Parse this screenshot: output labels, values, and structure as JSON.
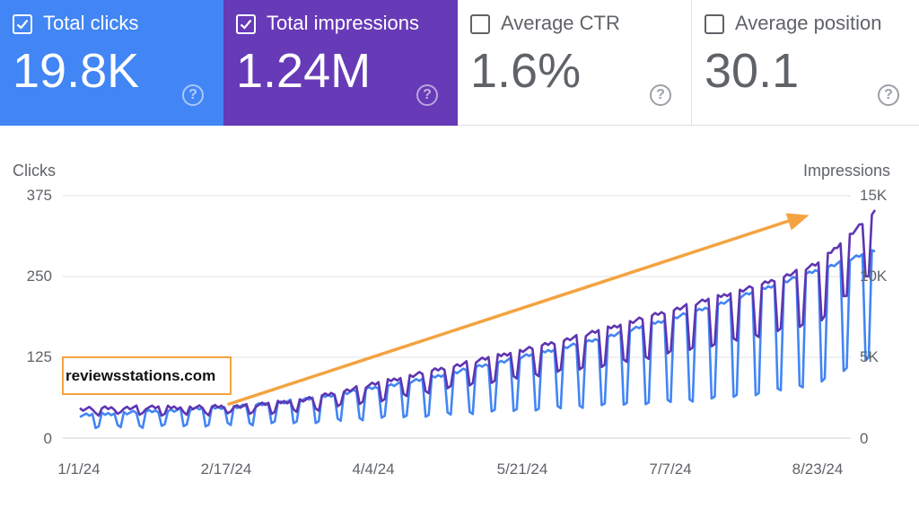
{
  "colors": {
    "clicks": "#4285f4",
    "impressions": "#5e35b1",
    "annotation": "#f4a340",
    "grid": "#e0e0e0"
  },
  "metrics": [
    {
      "label": "Total clicks",
      "value": "19.8K",
      "selected": true,
      "color": "#4285f4",
      "checkbox_icon": "checked-box-icon",
      "help_icon": "help-icon",
      "help_glyph": "?"
    },
    {
      "label": "Total impressions",
      "value": "1.24M",
      "selected": true,
      "color": "#673ab7",
      "checkbox_icon": "checked-box-icon",
      "help_icon": "help-icon",
      "help_glyph": "?"
    },
    {
      "label": "Average CTR",
      "value": "1.6%",
      "selected": false,
      "checkbox_icon": "empty-box-icon",
      "help_icon": "help-icon",
      "help_glyph": "?"
    },
    {
      "label": "Average position",
      "value": "30.1",
      "selected": false,
      "checkbox_icon": "empty-box-icon",
      "help_icon": "help-icon",
      "help_glyph": "?"
    }
  ],
  "watermark": "reviewsstations.com",
  "chart_data": {
    "type": "line",
    "ylabel": "Clicks",
    "y2label": "Impressions",
    "ylim": [
      0,
      375
    ],
    "y2lim": [
      0,
      15000
    ],
    "yticks": [
      "375",
      "250",
      "125",
      "0"
    ],
    "y2ticks": [
      "15K",
      "10K",
      "5K",
      "0"
    ],
    "xticks": [
      "1/1/24",
      "2/17/24",
      "4/4/24",
      "5/21/24",
      "7/7/24",
      "8/23/24"
    ],
    "grid": true,
    "x": {
      "start": "2024-01-01",
      "end": "2024-09-10",
      "granularity": "daily"
    },
    "series": [
      {
        "name": "Clicks",
        "axis": "left",
        "color": "#4285f4",
        "weekday_level": [
          35,
          40,
          45,
          50,
          60,
          75,
          90,
          110,
          130,
          150,
          175,
          200,
          230,
          260,
          290
        ],
        "weekend_level": [
          18,
          18,
          20,
          22,
          25,
          30,
          35,
          40,
          45,
          50,
          55,
          60,
          70,
          85,
          130
        ]
      },
      {
        "name": "Impressions",
        "axis": "right",
        "color": "#5e35b1",
        "weekday_level": [
          1800,
          1900,
          1900,
          2000,
          2400,
          3200,
          4000,
          4800,
          5600,
          6500,
          7500,
          8500,
          9500,
          10800,
          14000
        ],
        "weekend_level": [
          1500,
          1500,
          1500,
          1550,
          1700,
          2200,
          2800,
          3400,
          3900,
          4400,
          5000,
          5700,
          6400,
          7200,
          10500
        ]
      }
    ],
    "annotation": {
      "type": "arrow",
      "from": [
        "2024-02-17",
        52
      ],
      "to": [
        "2024-08-20",
        345
      ]
    }
  }
}
